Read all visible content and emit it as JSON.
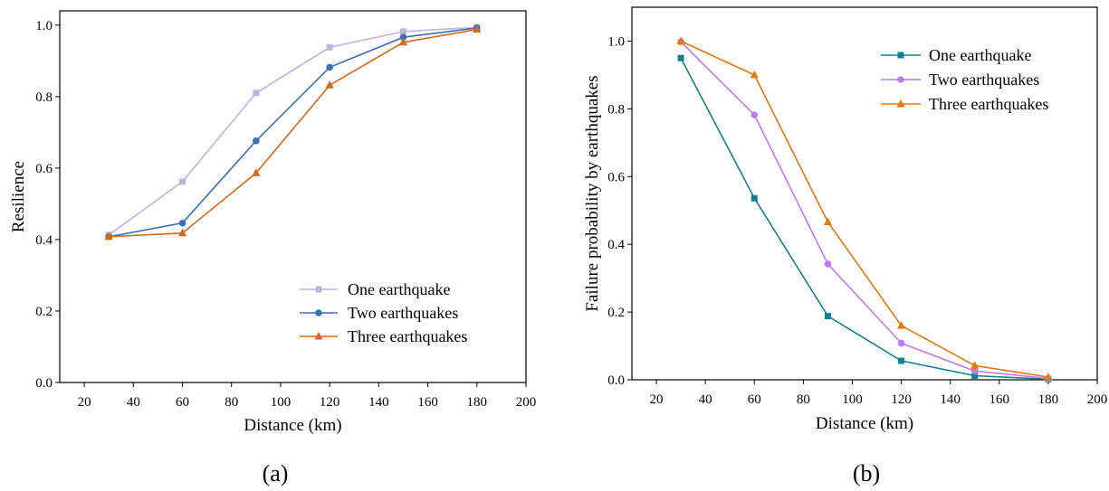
{
  "chart_data": [
    {
      "type": "line",
      "caption": "(a)",
      "xlabel": "Distance (km)",
      "ylabel": "Resilience",
      "xlim": [
        10,
        200
      ],
      "ylim": [
        0.0,
        1.04
      ],
      "xticks": [
        20,
        40,
        60,
        80,
        100,
        120,
        140,
        160,
        180,
        200
      ],
      "yticks": [
        0.0,
        0.2,
        0.4,
        0.6,
        0.8,
        1.0
      ],
      "xtick_labels": [
        "20",
        "40",
        "60",
        "80",
        "100",
        "120",
        "140",
        "160",
        "180",
        "200"
      ],
      "ytick_labels": [
        "0.0",
        "0.2",
        "0.4",
        "0.6",
        "0.8",
        "1.0"
      ],
      "legend_position": "bottom-right",
      "x": [
        30,
        60,
        90,
        120,
        150,
        180
      ],
      "series": [
        {
          "name": "One earthquake",
          "marker": "square",
          "color": "#c3b0dd",
          "values": [
            0.413,
            0.562,
            0.81,
            0.938,
            0.982,
            0.994
          ]
        },
        {
          "name": "Two earthquakes",
          "marker": "circle",
          "color": "#3c6eb4",
          "values": [
            0.408,
            0.446,
            0.676,
            0.882,
            0.966,
            0.992
          ]
        },
        {
          "name": "Three earthquakes",
          "marker": "triangle",
          "color": "#d2691e",
          "values": [
            0.408,
            0.418,
            0.586,
            0.832,
            0.952,
            0.988
          ]
        }
      ]
    },
    {
      "type": "line",
      "caption": "(b)",
      "xlabel": "Distance (km)",
      "ylabel": "Failure probability by earthquakes",
      "xlim": [
        10,
        200
      ],
      "ylim": [
        0.0,
        1.1
      ],
      "xticks": [
        20,
        40,
        60,
        80,
        100,
        120,
        140,
        160,
        180,
        200
      ],
      "yticks": [
        0.0,
        0.2,
        0.4,
        0.6,
        0.8,
        1.0
      ],
      "xtick_labels": [
        "20",
        "40",
        "60",
        "80",
        "100",
        "120",
        "140",
        "160",
        "180",
        "200"
      ],
      "ytick_labels": [
        "0.0",
        "0.2",
        "0.4",
        "0.6",
        "0.8",
        "1.0"
      ],
      "legend_position": "top-right",
      "x": [
        30,
        60,
        90,
        120,
        150,
        180
      ],
      "series": [
        {
          "name": "One earthquake",
          "marker": "square",
          "color": "#137f8f",
          "values": [
            0.95,
            0.536,
            0.188,
            0.056,
            0.012,
            0.002
          ]
        },
        {
          "name": "Two earthquakes",
          "marker": "circle",
          "color": "#c07af0",
          "values": [
            0.998,
            0.782,
            0.342,
            0.108,
            0.026,
            0.004
          ]
        },
        {
          "name": "Three earthquakes",
          "marker": "triangle",
          "color": "#e07a10",
          "values": [
            1.0,
            0.9,
            0.466,
            0.16,
            0.042,
            0.008
          ]
        }
      ]
    }
  ]
}
